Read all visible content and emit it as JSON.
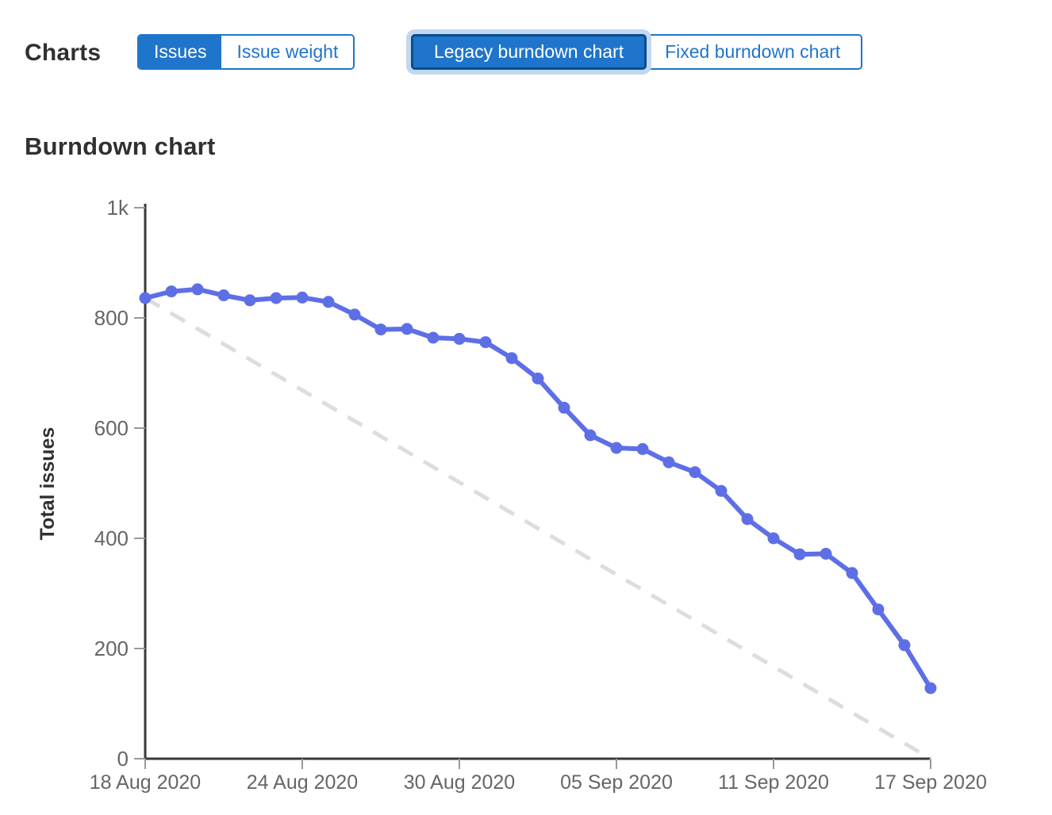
{
  "header": {
    "charts_label": "Charts",
    "metric_toggle": {
      "issues_label": "Issues",
      "issue_weight_label": "Issue weight",
      "selected": "Issues"
    },
    "chart_type_toggle": {
      "legacy_label": "Legacy burndown chart",
      "fixed_label": "Fixed burndown chart",
      "selected": "Legacy burndown chart"
    }
  },
  "section": {
    "title": "Burndown chart"
  },
  "colors": {
    "accent_blue": "#1f75cb",
    "selected_border": "#0a4d8c",
    "focus_halo": "#c2d7f0",
    "series_line": "#5e6fe6",
    "guideline": "#dddddd",
    "axis": "#383838",
    "tick": "#999999",
    "tick_label": "#666666",
    "heading": "#303030"
  },
  "chart_data": {
    "type": "line",
    "title": "Burndown chart",
    "xlabel": "",
    "ylabel": "Total issues",
    "ylim": [
      0,
      1000
    ],
    "grid": false,
    "legend": "none",
    "y_ticks": [
      {
        "value": 0,
        "label": "0"
      },
      {
        "value": 200,
        "label": "200"
      },
      {
        "value": 400,
        "label": "400"
      },
      {
        "value": 600,
        "label": "600"
      },
      {
        "value": 800,
        "label": "800"
      },
      {
        "value": 1000,
        "label": "1k"
      }
    ],
    "x_ticks": [
      {
        "index": 0,
        "label": "18 Aug 2020"
      },
      {
        "index": 6,
        "label": "24 Aug 2020"
      },
      {
        "index": 12,
        "label": "30 Aug 2020"
      },
      {
        "index": 18,
        "label": "05 Sep 2020"
      },
      {
        "index": 24,
        "label": "11 Sep 2020"
      },
      {
        "index": 30,
        "label": "17 Sep 2020"
      }
    ],
    "x": [
      "18 Aug 2020",
      "19 Aug 2020",
      "20 Aug 2020",
      "21 Aug 2020",
      "22 Aug 2020",
      "23 Aug 2020",
      "24 Aug 2020",
      "25 Aug 2020",
      "26 Aug 2020",
      "27 Aug 2020",
      "28 Aug 2020",
      "29 Aug 2020",
      "30 Aug 2020",
      "31 Aug 2020",
      "01 Sep 2020",
      "02 Sep 2020",
      "03 Sep 2020",
      "04 Sep 2020",
      "05 Sep 2020",
      "06 Sep 2020",
      "07 Sep 2020",
      "08 Sep 2020",
      "09 Sep 2020",
      "10 Sep 2020",
      "11 Sep 2020",
      "12 Sep 2020",
      "13 Sep 2020",
      "14 Sep 2020",
      "15 Sep 2020",
      "16 Sep 2020",
      "17 Sep 2020"
    ],
    "series": [
      {
        "name": "Total issues remaining",
        "style": "solid",
        "marker": "circle",
        "color": "#5e6fe6",
        "values": [
          836,
          848,
          852,
          841,
          832,
          836,
          837,
          829,
          806,
          779,
          780,
          764,
          762,
          756,
          727,
          690,
          637,
          587,
          564,
          562,
          538,
          520,
          486,
          435,
          400,
          371,
          372,
          337,
          271,
          206,
          128
        ]
      },
      {
        "name": "Guideline",
        "style": "dashed",
        "marker": "none",
        "color": "#dddddd",
        "x_endpoints": [
          0,
          30
        ],
        "values_endpoints": [
          836,
          0
        ]
      }
    ]
  }
}
